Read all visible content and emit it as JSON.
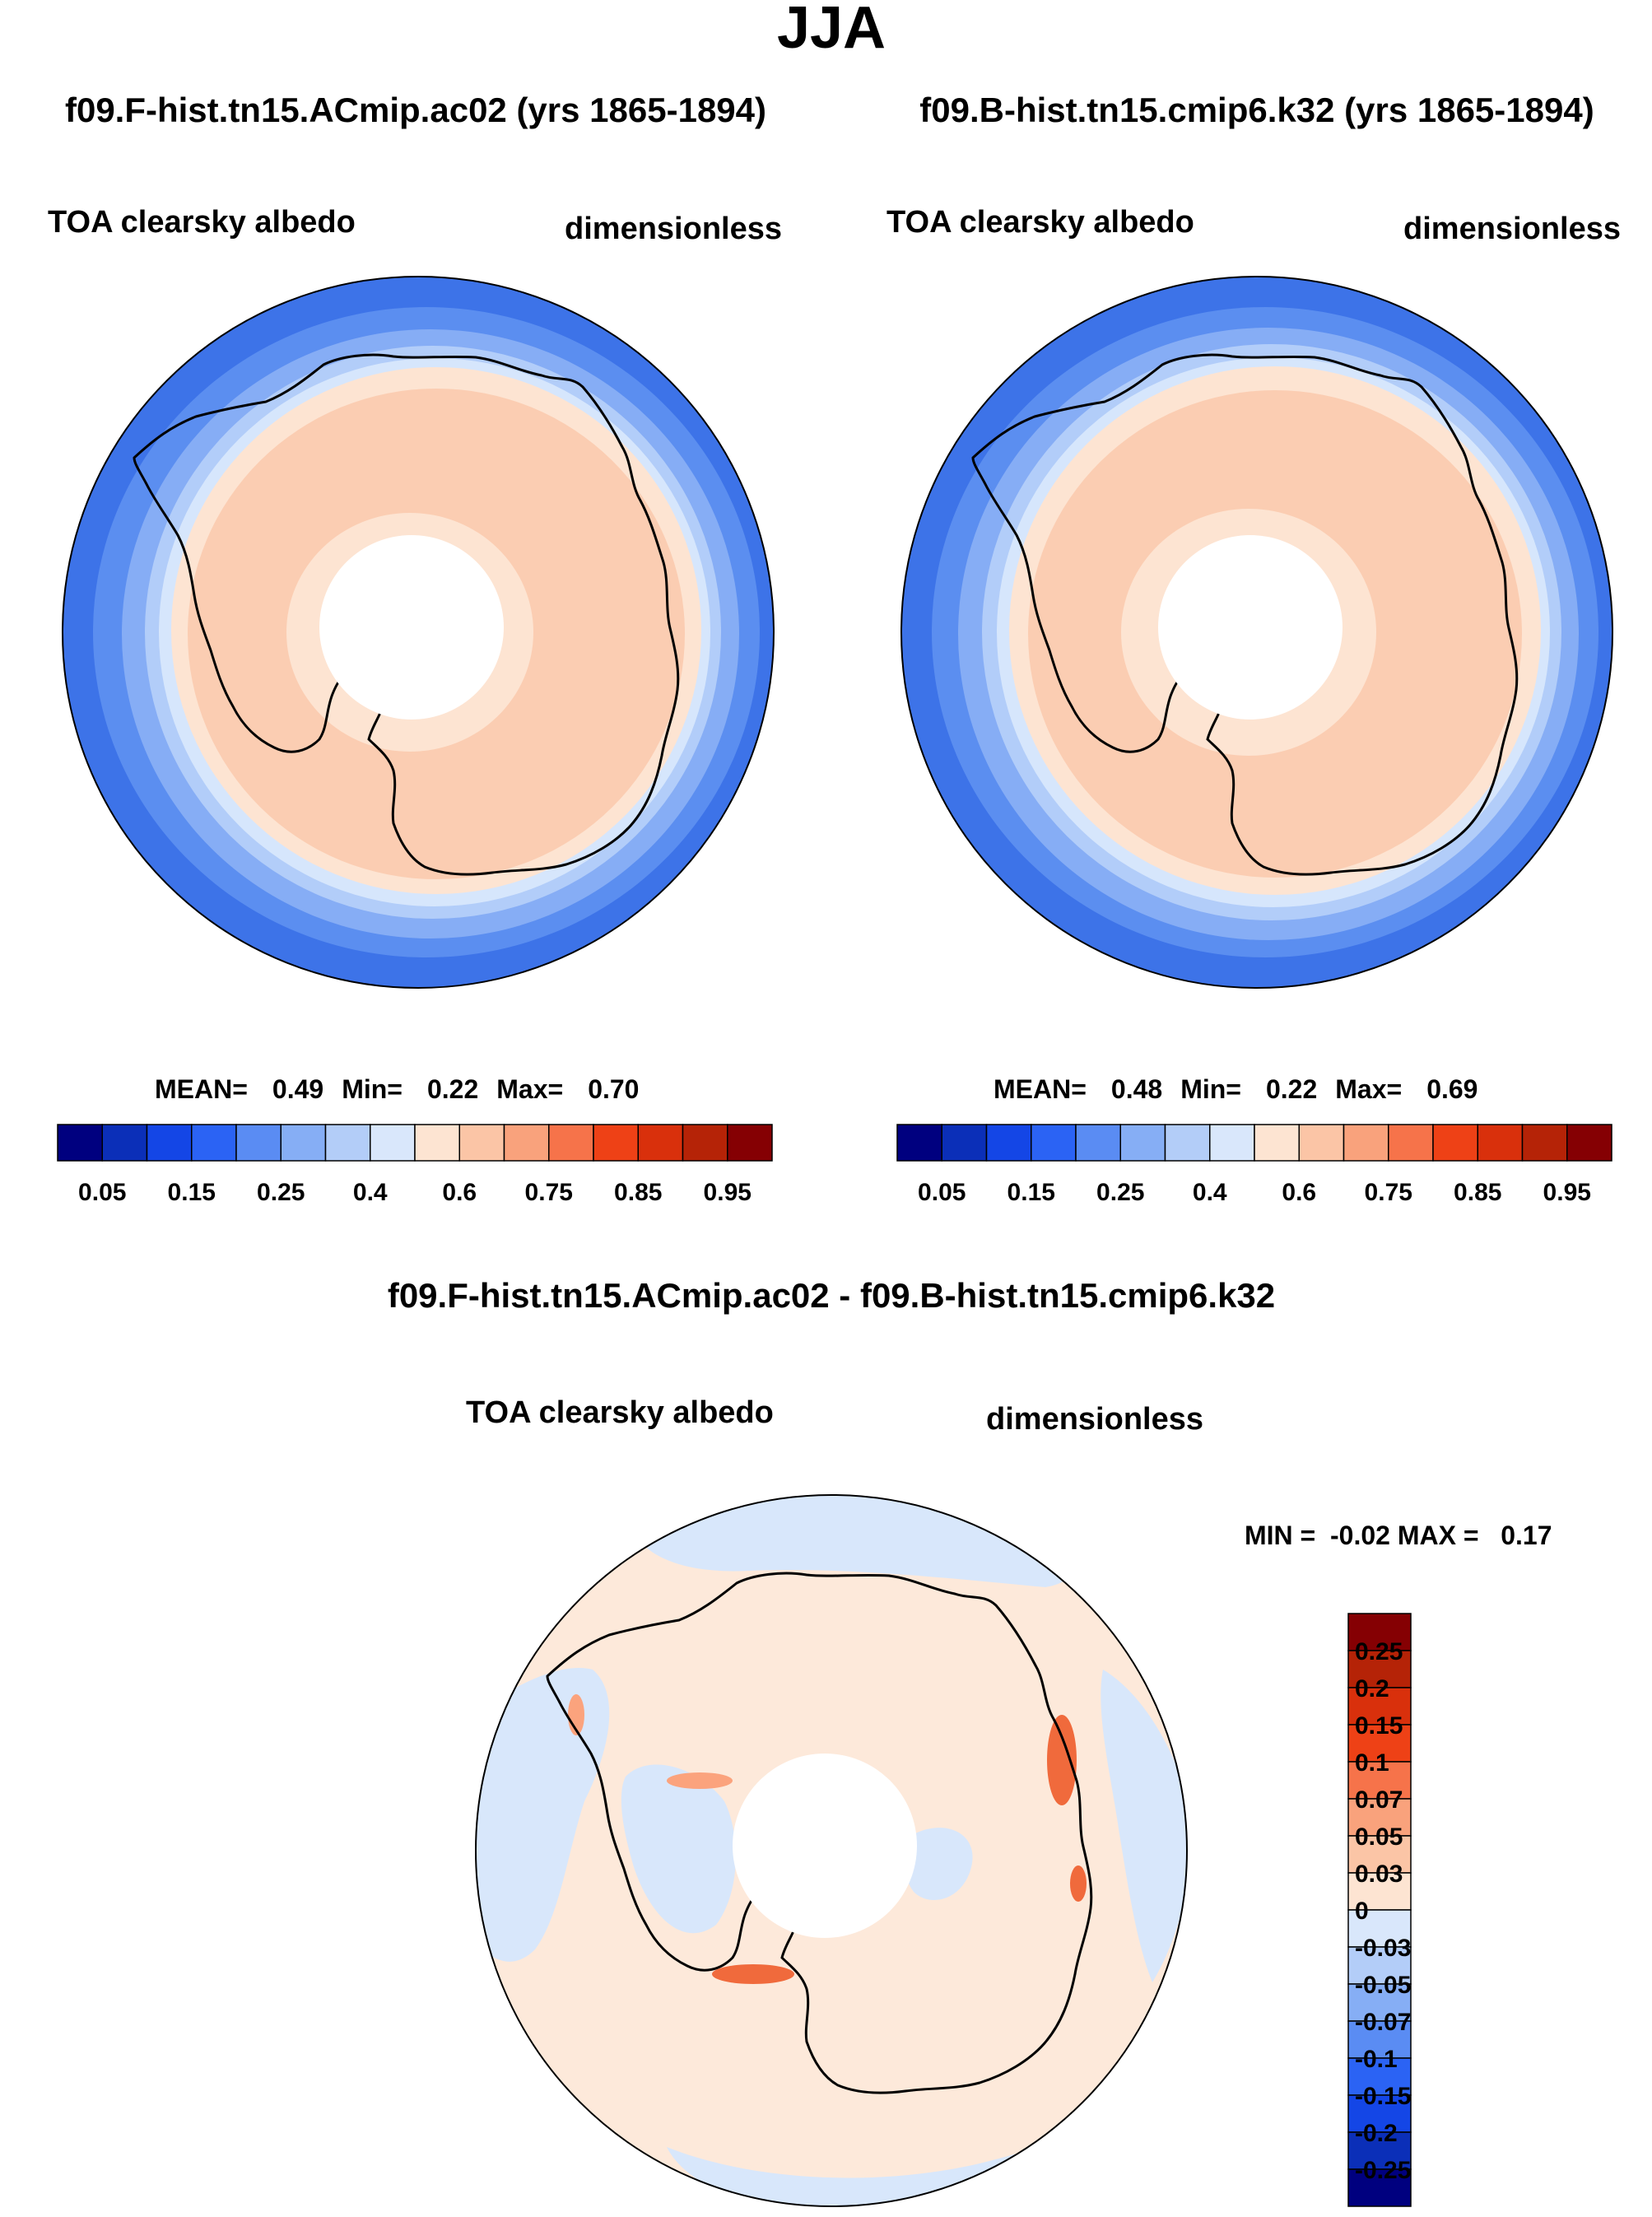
{
  "title": "JJA",
  "colors": {
    "ocean_deep": "#3d73e8",
    "ocean_mid": "#5b8ef0",
    "ocean_light": "#86adf5",
    "ocean_lighter": "#b2cdf9",
    "ocean_pale": "#d6e6fc",
    "ice_edge": "#fde4d2",
    "ice": "#fbcdb2",
    "diff_pos": "#fde9da",
    "diff_neg": "#d8e7fb",
    "diff_hot": "#f06a3c",
    "diff_hot2": "#fba37d"
  },
  "chart_data": [
    {
      "type": "heatmap",
      "name": "panel-1",
      "title": "f09.F-hist.tn15.ACmip.ac02 (yrs 1865-1894)",
      "left_label": "TOA clearsky albedo",
      "right_label": "dimensionless",
      "stats": {
        "mean_label": "MEAN=",
        "mean": "0.49",
        "min_label": "Min=",
        "min": "0.22",
        "max_label": "Max=",
        "max": "0.70"
      },
      "colorbar": {
        "orientation": "horizontal",
        "colors": [
          "#00007f",
          "#0b2fb8",
          "#1446e6",
          "#2b63f4",
          "#5a8cf3",
          "#86aef5",
          "#b3cdf8",
          "#d9e7fb",
          "#fde4d2",
          "#fbc5a6",
          "#f9a27c",
          "#f6734a",
          "#ee4116",
          "#d9300c",
          "#b52307",
          "#850003"
        ],
        "labels": [
          "0.05",
          "0.15",
          "0.25",
          "0.4",
          "0.6",
          "0.75",
          "0.85",
          "0.95"
        ]
      }
    },
    {
      "type": "heatmap",
      "name": "panel-2",
      "title": "f09.B-hist.tn15.cmip6.k32 (yrs 1865-1894)",
      "left_label": "TOA clearsky albedo",
      "right_label": "dimensionless",
      "stats": {
        "mean_label": "MEAN=",
        "mean": "0.48",
        "min_label": "Min=",
        "min": "0.22",
        "max_label": "Max=",
        "max": "0.69"
      },
      "colorbar": {
        "orientation": "horizontal",
        "colors": [
          "#00007f",
          "#0b2fb8",
          "#1446e6",
          "#2b63f4",
          "#5a8cf3",
          "#86aef5",
          "#b3cdf8",
          "#d9e7fb",
          "#fde4d2",
          "#fbc5a6",
          "#f9a27c",
          "#f6734a",
          "#ee4116",
          "#d9300c",
          "#b52307",
          "#850003"
        ],
        "labels": [
          "0.05",
          "0.15",
          "0.25",
          "0.4",
          "0.6",
          "0.75",
          "0.85",
          "0.95"
        ]
      }
    },
    {
      "type": "heatmap",
      "name": "panel-diff",
      "title": "f09.F-hist.tn15.ACmip.ac02 - f09.B-hist.tn15.cmip6.k32",
      "left_label": "TOA clearsky albedo",
      "right_label": "dimensionless",
      "stats": {
        "text": "MIN =  -0.02 MAX =   0.17"
      },
      "colorbar": {
        "orientation": "vertical",
        "colors": [
          "#850003",
          "#b52307",
          "#d9300c",
          "#ee4116",
          "#f6734a",
          "#f9a27c",
          "#fbc5a6",
          "#fde4d2",
          "#d9e7fb",
          "#b3cdf8",
          "#86aef5",
          "#5a8cf3",
          "#2b63f4",
          "#1446e6",
          "#0b2fb8",
          "#00007f"
        ],
        "labels": [
          "0.25",
          "0.2",
          "0.15",
          "0.1",
          "0.07",
          "0.05",
          "0.03",
          "0",
          "-0.03",
          "-0.05",
          "-0.07",
          "-0.1",
          "-0.15",
          "-0.2",
          "-0.25"
        ]
      }
    }
  ]
}
